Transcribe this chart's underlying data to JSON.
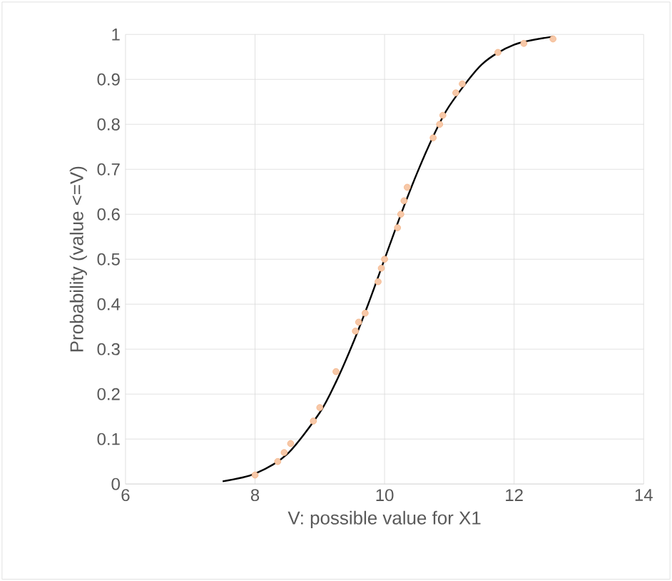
{
  "chart_data": {
    "type": "scatter",
    "xlabel": "V: possible value for X1",
    "ylabel": "Probability (value <=V)",
    "xlim": [
      6,
      14
    ],
    "xticks": [
      6,
      8,
      10,
      12,
      14
    ],
    "ylim": [
      0,
      1
    ],
    "yticks": [
      0,
      0.1,
      0.2,
      0.3,
      0.4,
      0.5,
      0.6,
      0.7,
      0.8,
      0.9,
      1
    ],
    "grid": true,
    "series": [
      {
        "type": "line",
        "color": "#000000",
        "marker": "none",
        "line_style": "solid",
        "x": [
          7.5,
          8,
          8.5,
          9,
          9.25,
          9.5,
          9.75,
          10,
          10.25,
          10.5,
          10.75,
          11,
          11.5,
          12,
          12.6
        ],
        "values": [
          0.006,
          0.023,
          0.067,
          0.159,
          0.227,
          0.309,
          0.401,
          0.5,
          0.599,
          0.691,
          0.773,
          0.841,
          0.933,
          0.977,
          0.995
        ]
      },
      {
        "color": "#f4b183",
        "marker": "circle",
        "x": [
          8.0,
          8.35,
          8.45,
          8.55,
          8.9,
          9.0,
          9.25,
          9.55,
          9.6,
          9.7,
          9.9,
          9.95,
          10.0,
          10.2,
          10.25,
          10.3,
          10.35,
          10.75,
          10.85,
          10.9,
          11.1,
          11.2,
          11.75,
          12.15,
          12.6
        ],
        "values": [
          0.02,
          0.05,
          0.07,
          0.09,
          0.14,
          0.17,
          0.25,
          0.34,
          0.36,
          0.38,
          0.45,
          0.48,
          0.5,
          0.57,
          0.6,
          0.63,
          0.66,
          0.77,
          0.8,
          0.82,
          0.87,
          0.89,
          0.96,
          0.98,
          0.99
        ]
      }
    ]
  }
}
